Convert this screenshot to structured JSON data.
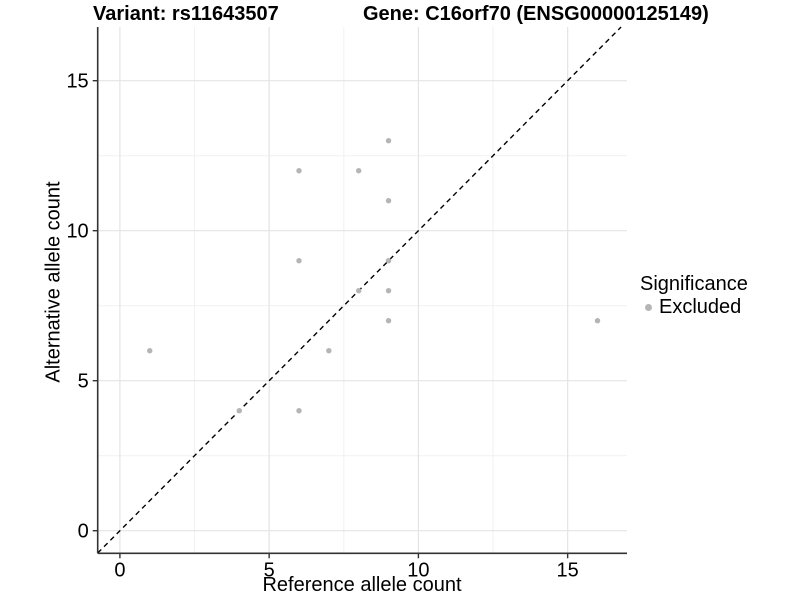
{
  "titles": {
    "variant": "Variant: rs11643507",
    "gene": "Gene: C16orf70 (ENSG00000125149)"
  },
  "axes": {
    "x": {
      "label": "Reference allele count",
      "major_ticks": [
        0,
        5,
        10,
        15
      ],
      "minor_ticks": [
        2.5,
        7.5,
        12.5
      ]
    },
    "y": {
      "label": "Alternative allele count",
      "major_ticks": [
        0,
        5,
        10,
        15
      ],
      "minor_ticks": [
        2.5,
        7.5,
        12.5
      ]
    }
  },
  "legend": {
    "title": "Significance",
    "items": [
      {
        "label": "Excluded",
        "color": "#b5b5b5"
      }
    ]
  },
  "colors": {
    "point": "#b5b5b5",
    "grid_major": "#e4e4e4",
    "grid_minor": "#f1f1f1",
    "axis_line": "#333333",
    "identity_line": "#000000",
    "text": "#000000"
  },
  "chart_data": {
    "type": "scatter",
    "title": "Variant: rs11643507   Gene: C16orf70 (ENSG00000125149)",
    "xlabel": "Reference allele count",
    "ylabel": "Alternative allele count",
    "xlim": [
      -0.75,
      17
    ],
    "ylim": [
      -0.75,
      16.8
    ],
    "x_ticks": [
      0,
      5,
      10,
      15
    ],
    "y_ticks": [
      0,
      5,
      10,
      15
    ],
    "grid": true,
    "legend_position": "right",
    "series": [
      {
        "name": "Excluded",
        "color": "#b5b5b5",
        "points": [
          [
            1,
            6
          ],
          [
            4,
            4
          ],
          [
            6,
            4
          ],
          [
            6,
            9
          ],
          [
            6,
            12
          ],
          [
            7,
            6
          ],
          [
            8,
            8
          ],
          [
            8,
            12
          ],
          [
            9,
            7
          ],
          [
            9,
            8
          ],
          [
            9,
            9
          ],
          [
            9,
            11
          ],
          [
            9,
            13
          ],
          [
            16,
            7
          ]
        ]
      }
    ],
    "reference_line": {
      "equation": "y = x",
      "style": "dashed",
      "color": "#000000"
    }
  }
}
